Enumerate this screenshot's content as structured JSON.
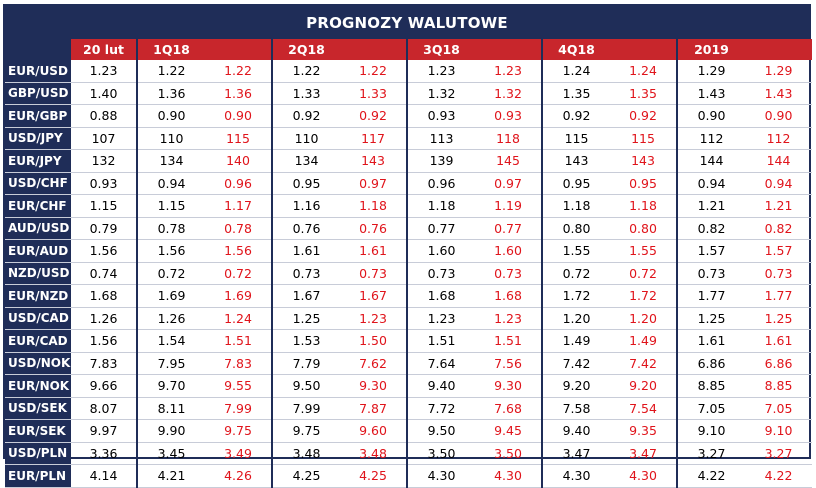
{
  "title": "PROGNOZY WALUTOWE",
  "header": {
    "current": "20 lut",
    "groups": [
      "1Q18",
      "2Q18",
      "3Q18",
      "4Q18",
      "2019"
    ]
  },
  "rows": [
    {
      "pair": "EUR/USD",
      "cur": "1.23",
      "v": [
        [
          "1.22",
          "1.22"
        ],
        [
          "1.22",
          "1.22"
        ],
        [
          "1.23",
          "1.23"
        ],
        [
          "1.24",
          "1.24"
        ],
        [
          "1.29",
          "1.29"
        ]
      ]
    },
    {
      "pair": "GBP/USD",
      "cur": "1.40",
      "v": [
        [
          "1.36",
          "1.36"
        ],
        [
          "1.33",
          "1.33"
        ],
        [
          "1.32",
          "1.32"
        ],
        [
          "1.35",
          "1.35"
        ],
        [
          "1.43",
          "1.43"
        ]
      ]
    },
    {
      "pair": "EUR/GBP",
      "cur": "0.88",
      "v": [
        [
          "0.90",
          "0.90"
        ],
        [
          "0.92",
          "0.92"
        ],
        [
          "0.93",
          "0.93"
        ],
        [
          "0.92",
          "0.92"
        ],
        [
          "0.90",
          "0.90"
        ]
      ]
    },
    {
      "pair": "USD/JPY",
      "cur": "107",
      "v": [
        [
          "110",
          "115"
        ],
        [
          "110",
          "117"
        ],
        [
          "113",
          "118"
        ],
        [
          "115",
          "115"
        ],
        [
          "112",
          "112"
        ]
      ]
    },
    {
      "pair": "EUR/JPY",
      "cur": "132",
      "v": [
        [
          "134",
          "140"
        ],
        [
          "134",
          "143"
        ],
        [
          "139",
          "145"
        ],
        [
          "143",
          "143"
        ],
        [
          "144",
          "144"
        ]
      ]
    },
    {
      "pair": "USD/CHF",
      "cur": "0.93",
      "v": [
        [
          "0.94",
          "0.96"
        ],
        [
          "0.95",
          "0.97"
        ],
        [
          "0.96",
          "0.97"
        ],
        [
          "0.95",
          "0.95"
        ],
        [
          "0.94",
          "0.94"
        ]
      ]
    },
    {
      "pair": "EUR/CHF",
      "cur": "1.15",
      "v": [
        [
          "1.15",
          "1.17"
        ],
        [
          "1.16",
          "1.18"
        ],
        [
          "1.18",
          "1.19"
        ],
        [
          "1.18",
          "1.18"
        ],
        [
          "1.21",
          "1.21"
        ]
      ]
    },
    {
      "pair": "AUD/USD",
      "cur": "0.79",
      "v": [
        [
          "0.78",
          "0.78"
        ],
        [
          "0.76",
          "0.76"
        ],
        [
          "0.77",
          "0.77"
        ],
        [
          "0.80",
          "0.80"
        ],
        [
          "0.82",
          "0.82"
        ]
      ]
    },
    {
      "pair": "EUR/AUD",
      "cur": "1.56",
      "v": [
        [
          "1.56",
          "1.56"
        ],
        [
          "1.61",
          "1.61"
        ],
        [
          "1.60",
          "1.60"
        ],
        [
          "1.55",
          "1.55"
        ],
        [
          "1.57",
          "1.57"
        ]
      ]
    },
    {
      "pair": "NZD/USD",
      "cur": "0.74",
      "v": [
        [
          "0.72",
          "0.72"
        ],
        [
          "0.73",
          "0.73"
        ],
        [
          "0.73",
          "0.73"
        ],
        [
          "0.72",
          "0.72"
        ],
        [
          "0.73",
          "0.73"
        ]
      ]
    },
    {
      "pair": "EUR/NZD",
      "cur": "1.68",
      "v": [
        [
          "1.69",
          "1.69"
        ],
        [
          "1.67",
          "1.67"
        ],
        [
          "1.68",
          "1.68"
        ],
        [
          "1.72",
          "1.72"
        ],
        [
          "1.77",
          "1.77"
        ]
      ]
    },
    {
      "pair": "USD/CAD",
      "cur": "1.26",
      "v": [
        [
          "1.26",
          "1.24"
        ],
        [
          "1.25",
          "1.23"
        ],
        [
          "1.23",
          "1.23"
        ],
        [
          "1.20",
          "1.20"
        ],
        [
          "1.25",
          "1.25"
        ]
      ]
    },
    {
      "pair": "EUR/CAD",
      "cur": "1.56",
      "v": [
        [
          "1.54",
          "1.51"
        ],
        [
          "1.53",
          "1.50"
        ],
        [
          "1.51",
          "1.51"
        ],
        [
          "1.49",
          "1.49"
        ],
        [
          "1.61",
          "1.61"
        ]
      ]
    },
    {
      "pair": "USD/NOK",
      "cur": "7.83",
      "v": [
        [
          "7.95",
          "7.83"
        ],
        [
          "7.79",
          "7.62"
        ],
        [
          "7.64",
          "7.56"
        ],
        [
          "7.42",
          "7.42"
        ],
        [
          "6.86",
          "6.86"
        ]
      ]
    },
    {
      "pair": "EUR/NOK",
      "cur": "9.66",
      "v": [
        [
          "9.70",
          "9.55"
        ],
        [
          "9.50",
          "9.30"
        ],
        [
          "9.40",
          "9.30"
        ],
        [
          "9.20",
          "9.20"
        ],
        [
          "8.85",
          "8.85"
        ]
      ]
    },
    {
      "pair": "USD/SEK",
      "cur": "8.07",
      "v": [
        [
          "8.11",
          "7.99"
        ],
        [
          "7.99",
          "7.87"
        ],
        [
          "7.72",
          "7.68"
        ],
        [
          "7.58",
          "7.54"
        ],
        [
          "7.05",
          "7.05"
        ]
      ]
    },
    {
      "pair": "EUR/SEK",
      "cur": "9.97",
      "v": [
        [
          "9.90",
          "9.75"
        ],
        [
          "9.75",
          "9.60"
        ],
        [
          "9.50",
          "9.45"
        ],
        [
          "9.40",
          "9.35"
        ],
        [
          "9.10",
          "9.10"
        ]
      ]
    },
    {
      "pair": "USD/PLN",
      "cur": "3.36",
      "v": [
        [
          "3.45",
          "3.49"
        ],
        [
          "3.48",
          "3.48"
        ],
        [
          "3.50",
          "3.50"
        ],
        [
          "3.47",
          "3.47"
        ],
        [
          "3.27",
          "3.27"
        ]
      ]
    },
    {
      "pair": "EUR/PLN",
      "cur": "4.14",
      "v": [
        [
          "4.21",
          "4.26"
        ],
        [
          "4.25",
          "4.25"
        ],
        [
          "4.30",
          "4.30"
        ],
        [
          "4.30",
          "4.30"
        ],
        [
          "4.22",
          "4.22"
        ]
      ]
    }
  ],
  "colors": {
    "navy": "#1f2d58",
    "red": "#c8262c",
    "forecast_red": "#e0141b"
  }
}
